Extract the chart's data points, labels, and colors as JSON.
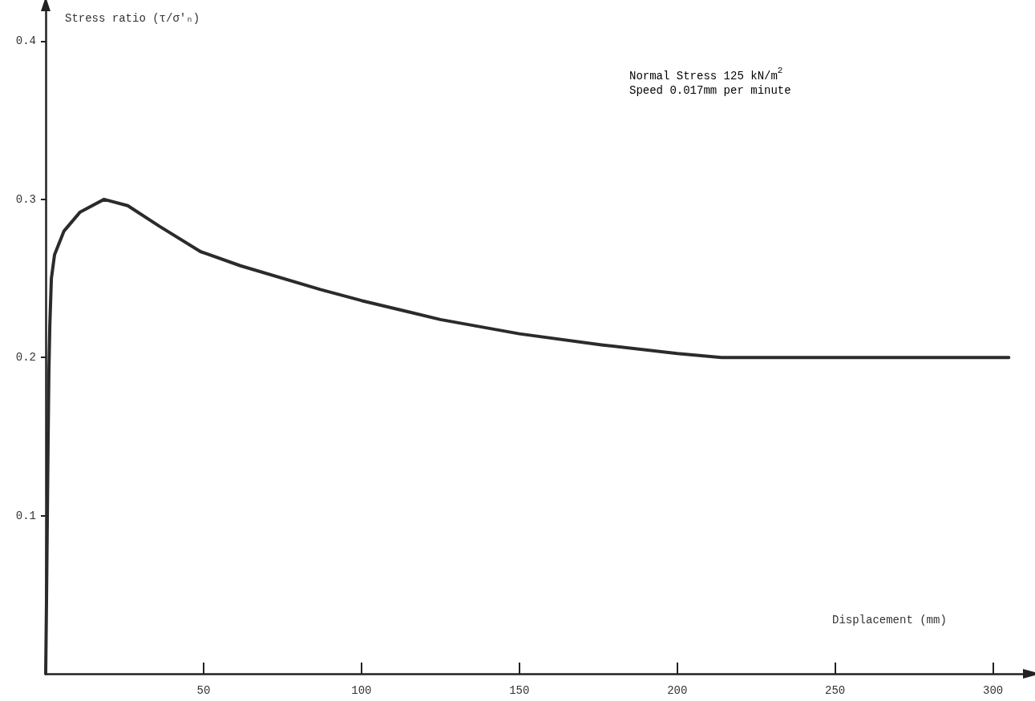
{
  "chart_data": {
    "type": "line",
    "xlabel": "Displacement (mm)",
    "ylabel": "Stress ratio (τ/σ'ₙ)",
    "annotations": [
      "Normal Stress 125 kN/m$^{2}$",
      "Speed 0.017mm per minute"
    ],
    "series": [
      {
        "color": "#2b2b2b",
        "x": [
          0,
          0.25,
          0.5,
          0.76,
          1.0,
          1.3,
          1.8,
          2.8,
          5.8,
          10.9,
          18.5,
          26,
          36,
          49,
          61.7,
          87,
          100,
          125,
          150,
          176,
          200,
          214,
          305
        ],
        "values": [
          0,
          0.045,
          0.096,
          0.147,
          0.19,
          0.22,
          0.25,
          0.265,
          0.28,
          0.292,
          0.3,
          0.296,
          0.283,
          0.267,
          0.258,
          0.243,
          0.236,
          0.224,
          0.215,
          0.208,
          0.2025,
          0.2,
          0.2
        ]
      }
    ],
    "xlim": [
      0,
      310
    ],
    "xticks": [
      50,
      100,
      150,
      200,
      250,
      300
    ],
    "ylim": [
      0,
      0.42
    ],
    "yticks": [
      0.1,
      0.2,
      0.3,
      0.4
    ],
    "grid": false,
    "marker": "none",
    "line_style": "solid"
  }
}
